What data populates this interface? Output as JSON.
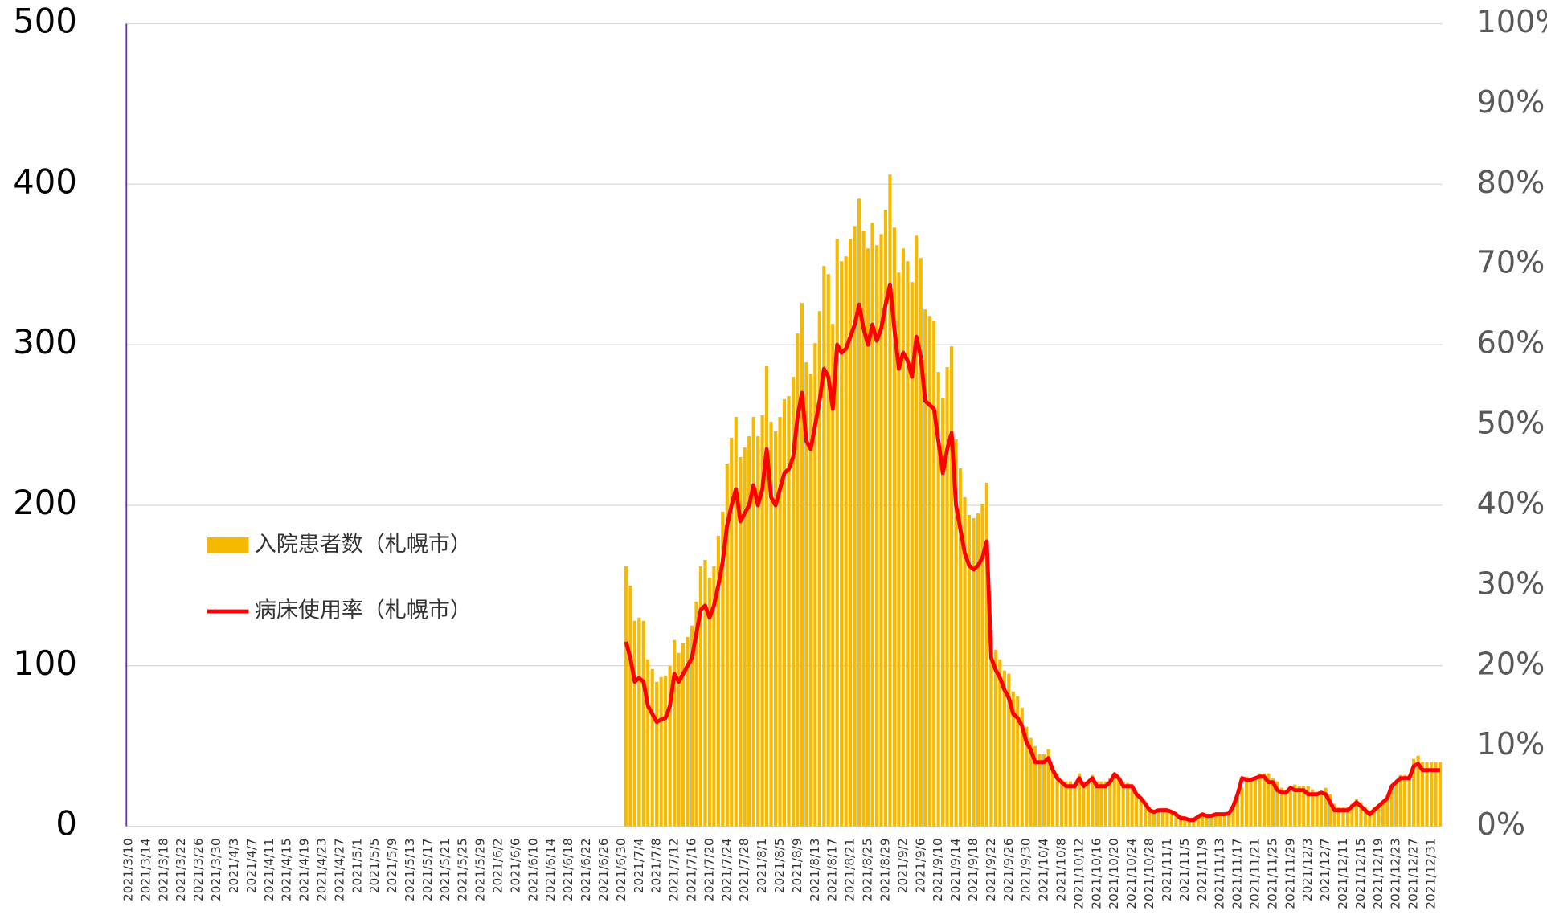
{
  "chart_data": {
    "type": "bar_line",
    "categories": [
      "2021/3/10",
      null,
      null,
      null,
      "2021/3/14",
      null,
      null,
      null,
      "2021/3/18",
      null,
      null,
      null,
      "2021/3/22",
      null,
      null,
      null,
      "2021/3/26",
      null,
      null,
      null,
      "2021/3/30",
      null,
      null,
      null,
      "2021/4/3",
      null,
      null,
      null,
      "2021/4/7",
      null,
      null,
      null,
      "2021/4/11",
      null,
      null,
      null,
      "2021/4/15",
      null,
      null,
      null,
      "2021/4/19",
      null,
      null,
      null,
      "2021/4/23",
      null,
      null,
      null,
      "2021/4/27",
      null,
      null,
      null,
      "2021/5/1",
      null,
      null,
      null,
      "2021/5/5",
      null,
      null,
      null,
      "2021/5/9",
      null,
      null,
      null,
      "2021/5/13",
      null,
      null,
      null,
      "2021/5/17",
      null,
      null,
      null,
      "2021/5/21",
      null,
      null,
      null,
      "2021/5/25",
      null,
      null,
      null,
      "2021/5/29",
      null,
      null,
      null,
      "2021/6/2",
      null,
      null,
      null,
      "2021/6/6",
      null,
      null,
      null,
      "2021/6/10",
      null,
      null,
      null,
      "2021/6/14",
      null,
      null,
      null,
      "2021/6/18",
      null,
      null,
      null,
      "2021/6/22",
      null,
      null,
      null,
      "2021/6/26",
      null,
      null,
      null,
      "2021/6/30",
      null,
      null,
      null,
      "2021/7/4",
      null,
      null,
      null,
      "2021/7/8",
      null,
      null,
      null,
      "2021/7/12",
      null,
      null,
      null,
      "2021/7/16",
      null,
      null,
      null,
      "2021/7/20",
      null,
      null,
      null,
      "2021/7/24",
      null,
      null,
      null,
      "2021/7/28",
      null,
      null,
      null,
      "2021/8/1",
      null,
      null,
      null,
      "2021/8/5",
      null,
      null,
      null,
      "2021/8/9",
      null,
      null,
      null,
      "2021/8/13",
      null,
      null,
      null,
      "2021/8/17",
      null,
      null,
      null,
      "2021/8/21",
      null,
      null,
      null,
      "2021/8/25",
      null,
      null,
      null,
      "2021/8/29",
      null,
      null,
      null,
      "2021/9/2",
      null,
      null,
      null,
      "2021/9/6",
      null,
      null,
      null,
      "2021/9/10",
      null,
      null,
      null,
      "2021/9/14",
      null,
      null,
      null,
      "2021/9/18",
      null,
      null,
      null,
      "2021/9/22",
      null,
      null,
      null,
      "2021/9/26",
      null,
      null,
      null,
      "2021/9/30",
      null,
      null,
      null,
      "2021/10/4",
      null,
      null,
      null,
      "2021/10/8",
      null,
      null,
      null,
      "2021/10/12",
      null,
      null,
      null,
      "2021/10/16",
      null,
      null,
      null,
      "2021/10/20",
      null,
      null,
      null,
      "2021/10/24",
      null,
      null,
      null,
      "2021/10/28",
      null,
      null,
      null,
      "2021/11/1",
      null,
      null,
      null,
      "2021/11/5",
      null,
      null,
      null,
      "2021/11/9",
      null,
      null,
      null,
      "2021/11/13",
      null,
      null,
      null,
      "2021/11/17",
      null,
      null,
      null,
      "2021/11/21",
      null,
      null,
      null,
      "2021/11/25",
      null,
      null,
      null,
      "2021/11/29",
      null,
      null,
      null,
      "2021/12/3",
      null,
      null,
      null,
      "2021/12/7",
      null,
      null,
      null,
      "2021/12/11",
      null,
      null,
      null,
      "2021/12/15",
      null,
      null,
      null,
      "2021/12/19",
      null,
      null,
      null,
      "2021/12/23",
      null,
      null,
      null,
      "2021/12/27",
      null,
      null,
      null,
      "2021/12/31",
      null,
      null
    ],
    "series": [
      {
        "name": "入院患者数（札幌市）",
        "type": "bar",
        "color": "#f6b900",
        "values": [
          null,
          null,
          null,
          null,
          null,
          null,
          null,
          null,
          null,
          null,
          null,
          null,
          null,
          null,
          null,
          null,
          null,
          null,
          null,
          null,
          null,
          null,
          null,
          null,
          null,
          null,
          null,
          null,
          null,
          null,
          null,
          null,
          null,
          null,
          null,
          null,
          null,
          null,
          null,
          null,
          null,
          null,
          null,
          null,
          null,
          null,
          null,
          null,
          null,
          null,
          null,
          null,
          null,
          null,
          null,
          null,
          null,
          null,
          null,
          null,
          null,
          null,
          null,
          null,
          null,
          null,
          null,
          null,
          null,
          null,
          null,
          null,
          null,
          null,
          null,
          null,
          null,
          null,
          null,
          null,
          null,
          null,
          null,
          null,
          null,
          null,
          null,
          null,
          null,
          null,
          null,
          null,
          null,
          null,
          null,
          null,
          null,
          null,
          null,
          null,
          null,
          null,
          null,
          null,
          null,
          null,
          null,
          null,
          null,
          null,
          null,
          null,
          null,
          162,
          150,
          128,
          130,
          128,
          104,
          98,
          90,
          93,
          94,
          100,
          116,
          108,
          114,
          118,
          125,
          140,
          162,
          166,
          155,
          162,
          181,
          196,
          226,
          242,
          255,
          230,
          236,
          243,
          255,
          243,
          256,
          287,
          252,
          246,
          255,
          266,
          268,
          280,
          307,
          326,
          289,
          282,
          301,
          321,
          349,
          344,
          313,
          366,
          352,
          355,
          366,
          374,
          391,
          371,
          360,
          376,
          362,
          369,
          384,
          406,
          373,
          345,
          360,
          352,
          339,
          368,
          354,
          322,
          318,
          315,
          283,
          267,
          286,
          299,
          241,
          223,
          205,
          194,
          192,
          195,
          201,
          214,
          118,
          110,
          104,
          97,
          95,
          84,
          81,
          74,
          62,
          55,
          50,
          45,
          45,
          48,
          38,
          33,
          29,
          28,
          28,
          27,
          33,
          28,
          28,
          32,
          28,
          28,
          28,
          30,
          33,
          30,
          28,
          27,
          26,
          21,
          17,
          14,
          12,
          10,
          11,
          10,
          10,
          10,
          8,
          7,
          5,
          5,
          4,
          6,
          7,
          7,
          7,
          7,
          7,
          7,
          8,
          12,
          18,
          24,
          31,
          30,
          30,
          33,
          33,
          33,
          30,
          28,
          24,
          22,
          22,
          26,
          25,
          25,
          25,
          23,
          21,
          22,
          24,
          20,
          14,
          12,
          12,
          12,
          14,
          17,
          15,
          12,
          10,
          12,
          13,
          15,
          18,
          25,
          28,
          32,
          32,
          32,
          42,
          44,
          40,
          40,
          40,
          40,
          40
        ]
      },
      {
        "name": "病床使用率（札幌市）",
        "type": "line",
        "axis": "y2",
        "color": "#ff0000",
        "values": [
          null,
          null,
          null,
          null,
          null,
          null,
          null,
          null,
          null,
          null,
          null,
          null,
          null,
          null,
          null,
          null,
          null,
          null,
          null,
          null,
          null,
          null,
          null,
          null,
          null,
          null,
          null,
          null,
          null,
          null,
          null,
          null,
          null,
          null,
          null,
          null,
          null,
          null,
          null,
          null,
          null,
          null,
          null,
          null,
          null,
          null,
          null,
          null,
          null,
          null,
          null,
          null,
          null,
          null,
          null,
          null,
          null,
          null,
          null,
          null,
          null,
          null,
          null,
          null,
          null,
          null,
          null,
          null,
          null,
          null,
          null,
          null,
          null,
          null,
          null,
          null,
          null,
          null,
          null,
          null,
          null,
          null,
          null,
          null,
          null,
          null,
          null,
          null,
          null,
          null,
          null,
          null,
          null,
          null,
          null,
          null,
          null,
          null,
          null,
          null,
          null,
          null,
          null,
          null,
          null,
          null,
          null,
          null,
          null,
          null,
          null,
          null,
          null,
          23,
          21,
          18,
          18.5,
          18,
          15,
          14,
          13,
          13.3,
          13.5,
          15,
          19,
          18,
          19,
          20,
          21,
          24,
          27,
          27.5,
          26,
          27.5,
          30,
          33,
          37.5,
          40,
          42,
          38,
          39,
          40,
          42.5,
          40,
          42,
          47,
          41,
          40,
          42,
          44,
          44.5,
          46,
          51,
          54,
          48,
          47,
          50,
          53,
          57,
          56,
          52,
          60,
          59,
          59.5,
          61,
          62.5,
          65,
          62,
          60,
          62.5,
          60.5,
          62,
          65,
          67.5,
          62,
          57,
          59,
          58,
          56,
          61,
          58.5,
          53,
          52.5,
          52,
          48,
          44,
          47,
          49,
          40,
          37,
          34,
          32.5,
          32,
          32.5,
          33.5,
          35.5,
          21,
          19.5,
          18.5,
          17,
          16,
          14,
          13.5,
          12.5,
          10.5,
          9.5,
          8,
          8,
          8,
          8.5,
          7,
          6,
          5.5,
          5,
          5,
          5,
          6,
          5,
          5.5,
          6,
          5,
          5,
          5,
          5.5,
          6.5,
          6,
          5,
          5,
          5,
          4,
          3.5,
          2.8,
          2,
          1.8,
          2,
          2,
          2,
          1.8,
          1.5,
          1,
          1,
          0.8,
          0.8,
          1.2,
          1.5,
          1.3,
          1.3,
          1.5,
          1.5,
          1.5,
          1.6,
          2.5,
          4,
          6,
          5.8,
          5.8,
          6,
          6.2,
          6.2,
          5.5,
          5.5,
          4.5,
          4.2,
          4.2,
          4.8,
          4.5,
          4.5,
          4.5,
          4,
          4,
          4,
          4.2,
          4,
          3,
          2,
          2,
          2,
          2,
          2.5,
          3,
          2.5,
          2,
          1.5,
          2,
          2.5,
          3,
          3.5,
          5,
          5.5,
          6,
          6,
          6,
          7.5,
          7.8,
          7,
          7,
          7,
          7,
          7
        ]
      }
    ],
    "ylim": [
      0,
      500
    ],
    "yticks": [
      0,
      100,
      200,
      300,
      400,
      500
    ],
    "y2lim": [
      0,
      100
    ],
    "y2ticks": [
      {
        "value": 0,
        "label": "0%"
      },
      {
        "value": 10,
        "label": "10%"
      },
      {
        "value": 20,
        "label": "20%"
      },
      {
        "value": 30,
        "label": "30%"
      },
      {
        "value": 40,
        "label": "40%"
      },
      {
        "value": 50,
        "label": "50%"
      },
      {
        "value": 60,
        "label": "60%"
      },
      {
        "value": 70,
        "label": "70%"
      },
      {
        "value": 80,
        "label": "80%"
      },
      {
        "value": 90,
        "label": "90%"
      },
      {
        "value": 100,
        "label": "100%"
      }
    ],
    "grid": true,
    "legend": "left"
  }
}
